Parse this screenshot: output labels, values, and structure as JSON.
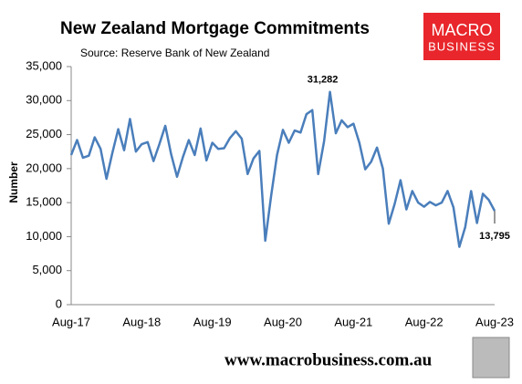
{
  "chart_data": {
    "type": "line",
    "title": "New Zealand Mortgage Commitments",
    "subtitle": "Source: Reserve Bank of New Zealand",
    "y_label": "Number",
    "logo": [
      "MACRO",
      "BUSINESS"
    ],
    "footer": "www.macrobusiness.com.au",
    "categories": [
      "Aug-17",
      null,
      null,
      null,
      null,
      null,
      null,
      null,
      null,
      null,
      null,
      null,
      "Aug-18",
      null,
      null,
      null,
      null,
      null,
      null,
      null,
      null,
      null,
      null,
      null,
      "Aug-19",
      null,
      null,
      null,
      null,
      null,
      null,
      null,
      null,
      null,
      null,
      null,
      "Aug-20",
      null,
      null,
      null,
      null,
      null,
      null,
      null,
      null,
      null,
      null,
      null,
      "Aug-21",
      null,
      null,
      null,
      null,
      null,
      null,
      null,
      null,
      null,
      null,
      null,
      "Aug-22",
      null,
      null,
      null,
      null,
      null,
      null,
      null,
      null,
      null,
      null,
      null,
      "Aug-23"
    ],
    "series": [
      {
        "name": "Mortgage commitments",
        "color": "#4a7ebb",
        "values": [
          22000,
          24200,
          21600,
          21900,
          24600,
          22900,
          18500,
          22300,
          25800,
          22700,
          27300,
          22500,
          23600,
          23900,
          21100,
          23600,
          26300,
          22100,
          18800,
          21700,
          24200,
          22000,
          25900,
          21200,
          23800,
          22900,
          23000,
          24500,
          25500,
          24400,
          19200,
          21500,
          22600,
          9400,
          16000,
          22000,
          25700,
          23800,
          25600,
          25300,
          28000,
          28600,
          19200,
          24000,
          31282,
          25200,
          27100,
          26100,
          26600,
          23800,
          19900,
          21000,
          23100,
          20000,
          11900,
          14800,
          18300,
          14000,
          16700,
          15000,
          14400,
          15100,
          14600,
          15000,
          16700,
          14300,
          8500,
          11400,
          16700,
          12000,
          16300,
          15400,
          13795
        ],
        "value_labels": [
          null,
          null,
          null,
          null,
          null,
          null,
          null,
          null,
          null,
          null,
          null,
          null,
          null,
          null,
          null,
          null,
          null,
          null,
          null,
          null,
          null,
          null,
          null,
          null,
          null,
          null,
          null,
          null,
          null,
          null,
          null,
          null,
          null,
          null,
          null,
          null,
          null,
          null,
          null,
          null,
          null,
          null,
          null,
          null,
          "31,282",
          null,
          null,
          null,
          null,
          null,
          null,
          null,
          null,
          null,
          null,
          null,
          null,
          null,
          null,
          null,
          null,
          null,
          null,
          null,
          null,
          null,
          null,
          null,
          null,
          null,
          null,
          null,
          "13,795"
        ]
      }
    ],
    "ylim": [
      0,
      35000
    ],
    "yticks": [
      0,
      {
        "value": 5000,
        "label": "5,000"
      },
      {
        "value": 10000,
        "label": "10,000"
      },
      {
        "value": 15000,
        "label": "15,000"
      },
      {
        "value": 20000,
        "label": "20,000"
      },
      {
        "value": 25000,
        "label": "25,000"
      },
      {
        "value": 30000,
        "label": "30,000"
      },
      {
        "value": 35000,
        "label": "35,000"
      }
    ],
    "grid": false
  }
}
